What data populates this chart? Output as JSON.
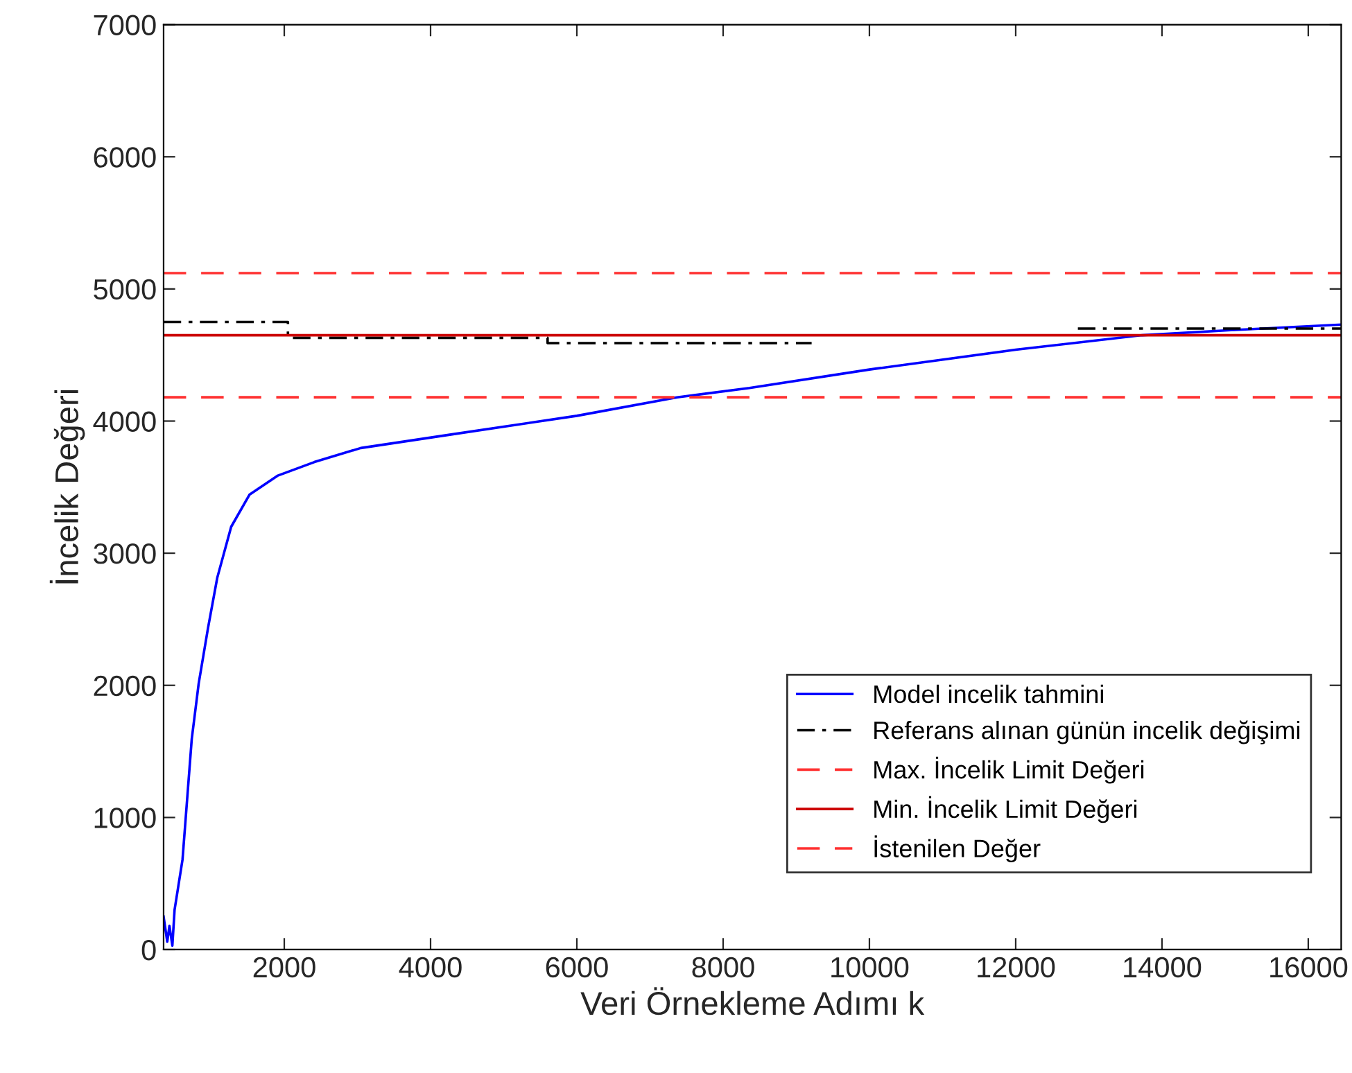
{
  "chart_data": {
    "type": "line",
    "xlabel": "Veri Örnekleme Adımı k",
    "ylabel": "İncelik Değeri",
    "xlim": [
      350,
      16450
    ],
    "ylim": [
      0,
      7000
    ],
    "xticks": [
      2000,
      4000,
      6000,
      8000,
      10000,
      12000,
      14000,
      16000
    ],
    "yticks": [
      0,
      1000,
      2000,
      3000,
      4000,
      5000,
      6000,
      7000
    ],
    "grid": false,
    "legend": "bottom right",
    "series": [
      {
        "name": "Model incelik tahmini",
        "color": "#0000ff",
        "line_style": "solid",
        "x": [
          350,
          400,
          430,
          470,
          500,
          609,
          735,
          830,
          957,
          1084,
          1274,
          1526,
          1906,
          2412,
          3045,
          4310,
          6000,
          7370,
          8360,
          10000,
          12000,
          13730,
          15000,
          16450
        ],
        "values": [
          250,
          60,
          180,
          30,
          300,
          682,
          1594,
          2014,
          2433,
          2815,
          3200,
          3444,
          3586,
          3690,
          3796,
          3901,
          4040,
          4180,
          4250,
          4390,
          4540,
          4650,
          4690,
          4730
        ]
      },
      {
        "name": "Referans alınan günün incelik değişimi",
        "type": "step",
        "color": "#000000",
        "line_style": "dashdot",
        "x": [
          350,
          2050,
          5600,
          9210,
          12850,
          16450
        ],
        "values": [
          4750,
          4630,
          4590,
          null,
          4700,
          4700
        ]
      },
      {
        "name": "Max. İncelik Limit Değeri",
        "color": "#ff3030",
        "line_style": "dashed",
        "x": [
          350,
          16450
        ],
        "values": [
          5120,
          5120
        ]
      },
      {
        "name": "Min. İncelik Limit Değeri",
        "color": "#cc0000",
        "line_style": "solid",
        "x": [
          350,
          16450
        ],
        "values": [
          4650,
          4650
        ]
      },
      {
        "name": "İstenilen Değer",
        "color": "#ff3030",
        "line_style": "dashed",
        "x": [
          350,
          16450
        ],
        "values": [
          4180,
          4180
        ]
      }
    ]
  }
}
